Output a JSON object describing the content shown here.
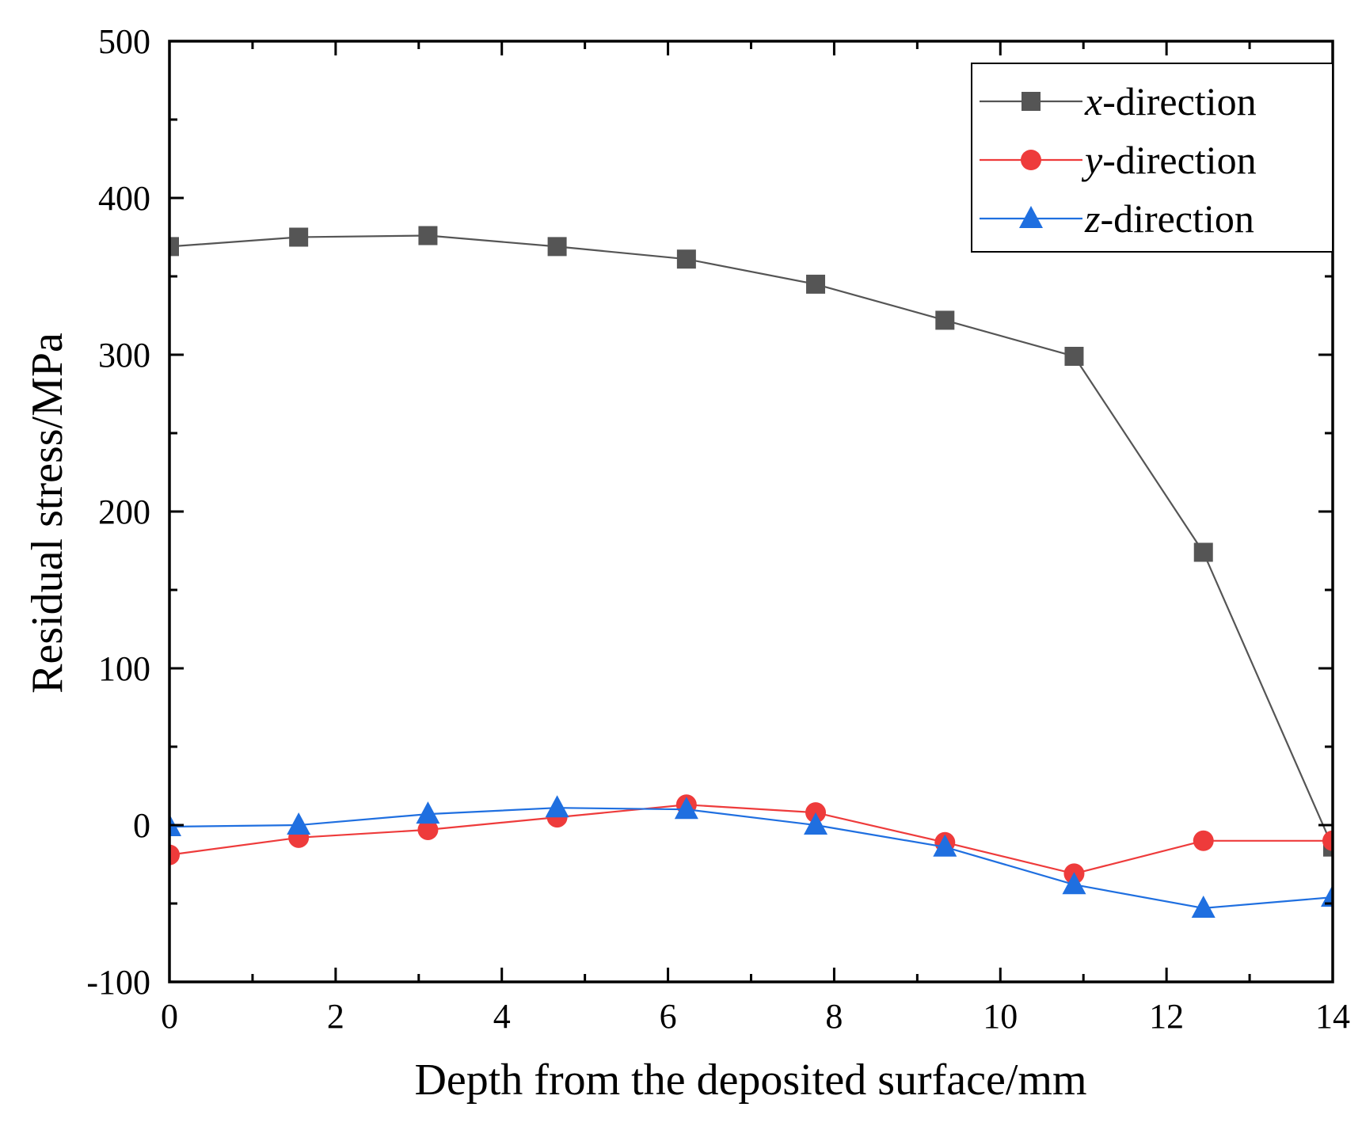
{
  "chart_data": {
    "type": "line",
    "title": "",
    "xlabel": "Depth from the deposited surface/mm",
    "ylabel": "Residual stress/MPa",
    "xlim": [
      0,
      14
    ],
    "ylim": [
      -100,
      500
    ],
    "xticks": [
      0,
      2,
      4,
      6,
      8,
      10,
      12,
      14
    ],
    "yticks": [
      -100,
      0,
      100,
      200,
      300,
      400,
      500
    ],
    "grid": false,
    "legend_position": "top-right",
    "x": [
      0,
      1.555,
      3.111,
      4.666,
      6.222,
      7.777,
      9.333,
      10.888,
      12.444,
      14.0
    ],
    "series": [
      {
        "name": "x-direction",
        "var": "x",
        "suffix": "-direction",
        "marker": "square",
        "color": "#555555",
        "values": [
          369,
          375,
          376,
          369,
          361,
          345,
          322,
          299,
          174,
          -14
        ]
      },
      {
        "name": "y-direction",
        "var": "y",
        "suffix": "-direction",
        "marker": "circle",
        "color": "#ee3b3b",
        "values": [
          -19,
          -8,
          -3,
          5,
          13,
          8,
          -11,
          -31,
          -10,
          -10
        ]
      },
      {
        "name": "z-direction",
        "var": "z",
        "suffix": "-direction",
        "marker": "triangle",
        "color": "#1f6fe0",
        "values": [
          -1,
          0,
          7,
          11,
          10,
          0,
          -14,
          -38,
          -53,
          -46
        ]
      }
    ]
  }
}
